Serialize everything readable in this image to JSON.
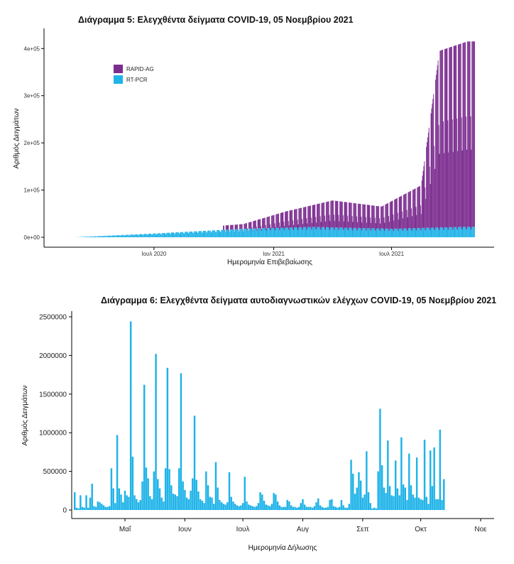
{
  "chart_data": [
    {
      "type": "bar",
      "title": "Διάγραμμα 5: Ελεγχθέντα δείγματα COVID-19, 05 Νοεμβρίου 2021",
      "xlabel": "Ημερομηνία Επιβεβαίωσης",
      "ylabel": "Αριθμός Δειγμάτων",
      "stacked": true,
      "ylim": [
        0,
        420000
      ],
      "yticks": [
        0,
        100000,
        200000,
        300000,
        400000
      ],
      "ytick_labels": [
        "0e+00",
        "1e+05",
        "2e+05",
        "3e+05",
        "4e+05"
      ],
      "xticks": [
        {
          "date": "2020-07-01",
          "label": "Ιουλ 2020"
        },
        {
          "date": "2021-01-01",
          "label": "Ιαν 2021"
        },
        {
          "date": "2021-07-01",
          "label": "Ιουλ 2021"
        }
      ],
      "date_range": [
        "2020-03-01",
        "2021-11-05"
      ],
      "legend_position": "top-left",
      "series": [
        {
          "name": "RAPID-AG",
          "color": "#7b2c8f",
          "note_peaks": [
            {
              "date": "2020-11-15",
              "value": 28000
            },
            {
              "date": "2021-01-20",
              "value": 55000
            },
            {
              "date": "2021-04-01",
              "value": 78000
            },
            {
              "date": "2021-06-15",
              "value": 65000
            },
            {
              "date": "2021-08-15",
              "value": 110000
            },
            {
              "date": "2021-09-12",
              "value": 395000
            },
            {
              "date": "2021-10-25",
              "value": 415000
            }
          ]
        },
        {
          "name": "RT-PCR",
          "color": "#1fb3e8",
          "note_peaks": [
            {
              "date": "2020-07-01",
              "value": 8000
            },
            {
              "date": "2020-11-15",
              "value": 18000
            },
            {
              "date": "2021-03-01",
              "value": 22000
            },
            {
              "date": "2021-07-01",
              "value": 18000
            },
            {
              "date": "2021-10-15",
              "value": 22000
            }
          ]
        }
      ]
    },
    {
      "type": "bar",
      "title": "Διάγραμμα 6: Ελεγχθέντα δείγματα αυτοδιαγνωστικών ελέγχων COVID-19, 05 Νοεμβρίου 2021",
      "xlabel": "Ημερομηνία Δήλωσης",
      "ylabel": "Αριθμός Δειγμάτων",
      "ylim": [
        0,
        2500000
      ],
      "yticks": [
        0,
        500000,
        1000000,
        1500000,
        2000000,
        2500000
      ],
      "ytick_labels": [
        "0",
        "500000",
        "1000000",
        "1500000",
        "2000000",
        "2500000"
      ],
      "xticks": [
        {
          "date": "2021-05-01",
          "label": "Μαΐ"
        },
        {
          "date": "2021-06-01",
          "label": "Ιουν"
        },
        {
          "date": "2021-07-01",
          "label": "Ιουλ"
        },
        {
          "date": "2021-08-01",
          "label": "Αυγ"
        },
        {
          "date": "2021-09-01",
          "label": "Σεπ"
        },
        {
          "date": "2021-10-01",
          "label": "Οκτ"
        },
        {
          "date": "2021-11-01",
          "label": "Νοε"
        }
      ],
      "color": "#1fb3e8",
      "start_date": "2021-04-05",
      "values": [
        230000,
        30000,
        20000,
        190000,
        40000,
        30000,
        190000,
        30000,
        160000,
        340000,
        50000,
        40000,
        110000,
        100000,
        80000,
        60000,
        40000,
        40000,
        50000,
        540000,
        280000,
        90000,
        970000,
        280000,
        200000,
        100000,
        250000,
        190000,
        170000,
        2440000,
        690000,
        190000,
        140000,
        100000,
        130000,
        370000,
        1620000,
        550000,
        410000,
        180000,
        140000,
        500000,
        2020000,
        400000,
        280000,
        160000,
        110000,
        540000,
        1840000,
        530000,
        320000,
        210000,
        200000,
        180000,
        540000,
        1770000,
        370000,
        260000,
        160000,
        140000,
        250000,
        410000,
        1220000,
        390000,
        240000,
        140000,
        120000,
        90000,
        500000,
        320000,
        170000,
        160000,
        80000,
        620000,
        290000,
        130000,
        100000,
        80000,
        70000,
        100000,
        490000,
        170000,
        110000,
        80000,
        60000,
        50000,
        60000,
        90000,
        430000,
        110000,
        70000,
        60000,
        50000,
        40000,
        50000,
        90000,
        230000,
        200000,
        120000,
        70000,
        60000,
        50000,
        80000,
        220000,
        200000,
        110000,
        60000,
        40000,
        40000,
        40000,
        130000,
        110000,
        60000,
        40000,
        40000,
        30000,
        40000,
        90000,
        140000,
        70000,
        40000,
        40000,
        40000,
        30000,
        50000,
        100000,
        150000,
        60000,
        40000,
        30000,
        30000,
        40000,
        130000,
        140000,
        50000,
        40000,
        30000,
        40000,
        130000,
        60000,
        30000,
        30000,
        80000,
        650000,
        470000,
        210000,
        290000,
        490000,
        380000,
        160000,
        200000,
        760000,
        230000,
        90000,
        20000,
        30000,
        20000,
        500000,
        1310000,
        580000,
        290000,
        220000,
        900000,
        310000,
        190000,
        180000,
        640000,
        280000,
        190000,
        940000,
        330000,
        290000,
        130000,
        730000,
        320000,
        200000,
        160000,
        680000,
        160000,
        140000,
        130000,
        910000,
        170000,
        80000,
        770000,
        310000,
        810000,
        140000,
        140000,
        1040000,
        130000,
        400000
      ]
    }
  ]
}
